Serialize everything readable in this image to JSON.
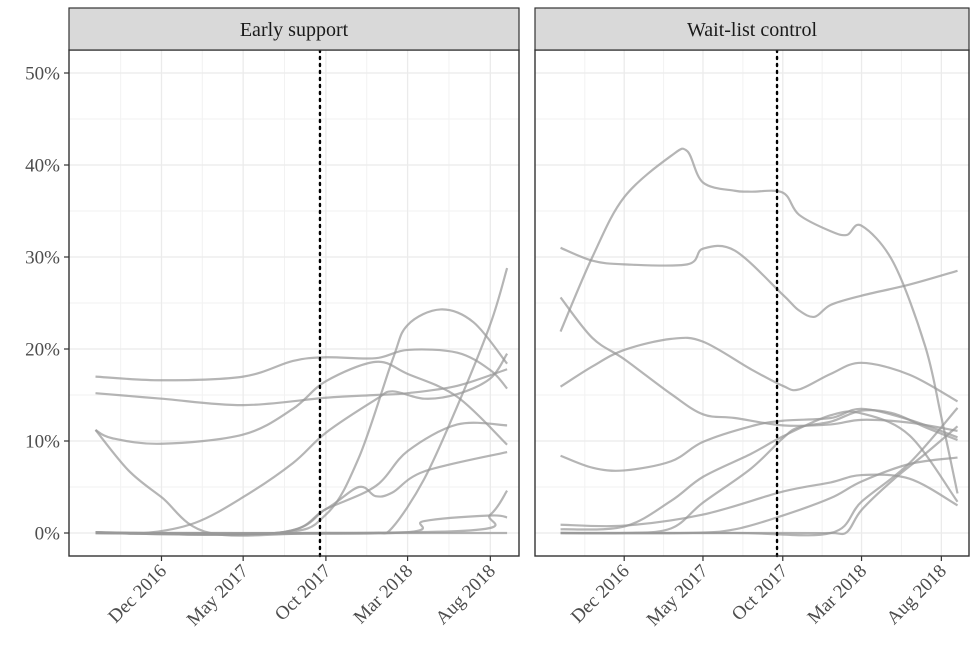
{
  "chart_data": {
    "type": "line",
    "facet_labels": [
      "Early support",
      "Wait-list control"
    ],
    "y_tick_labels": [
      "0%",
      "10%",
      "20%",
      "30%",
      "40%",
      "50%"
    ],
    "y_ticks": [
      0,
      10,
      20,
      30,
      40,
      50
    ],
    "ylim": [
      -2.5,
      52.5
    ],
    "x_tick_labels": [
      "Dec 2016",
      "May 2017",
      "Oct 2017",
      "Mar 2018",
      "Aug 2018"
    ],
    "x_ticks": [
      "2016-12-01",
      "2017-05-01",
      "2017-10-01",
      "2018-03-01",
      "2018-08-01"
    ],
    "xlim": [
      "2016-06-13",
      "2018-09-23"
    ],
    "reference_line_date": "2017-09-20",
    "grid": true,
    "line_color": "#999999",
    "reference_line_color": "#000000",
    "panels": [
      {
        "facet": "Early support",
        "series": [
          {
            "points": [
              [
                "2016-08-01",
                17.0
              ],
              [
                "2016-12-01",
                16.6
              ],
              [
                "2017-05-01",
                17.0
              ],
              [
                "2017-08-01",
                18.7
              ],
              [
                "2017-10-01",
                19.1
              ],
              [
                "2018-01-01",
                19.0
              ],
              [
                "2018-03-01",
                19.9
              ],
              [
                "2018-06-01",
                19.6
              ],
              [
                "2018-08-01",
                17.7
              ],
              [
                "2018-09-01",
                15.7
              ]
            ]
          },
          {
            "points": [
              [
                "2016-08-01",
                15.2
              ],
              [
                "2016-12-01",
                14.6
              ],
              [
                "2017-05-01",
                13.9
              ],
              [
                "2017-10-01",
                14.7
              ],
              [
                "2018-01-01",
                15.0
              ],
              [
                "2018-03-01",
                15.2
              ],
              [
                "2018-06-01",
                16.0
              ],
              [
                "2018-09-01",
                17.8
              ]
            ]
          },
          {
            "points": [
              [
                "2016-08-01",
                11.2
              ],
              [
                "2016-09-01",
                10.3
              ],
              [
                "2016-12-01",
                9.7
              ],
              [
                "2017-05-01",
                10.7
              ],
              [
                "2017-08-01",
                13.5
              ],
              [
                "2017-10-01",
                16.5
              ],
              [
                "2018-01-01",
                18.6
              ],
              [
                "2018-03-01",
                17.3
              ],
              [
                "2018-06-01",
                14.8
              ],
              [
                "2018-09-01",
                9.6
              ]
            ]
          },
          {
            "points": [
              [
                "2016-08-01",
                11.2
              ],
              [
                "2016-10-01",
                6.8
              ],
              [
                "2016-12-01",
                3.9
              ],
              [
                "2017-03-01",
                0.0
              ],
              [
                "2017-10-01",
                0.0
              ],
              [
                "2018-09-01",
                0.0
              ]
            ]
          },
          {
            "points": [
              [
                "2016-08-01",
                0.1
              ],
              [
                "2016-11-01",
                0.0
              ],
              [
                "2017-02-01",
                1.1
              ],
              [
                "2017-05-01",
                3.9
              ],
              [
                "2017-08-01",
                7.6
              ],
              [
                "2017-10-01",
                10.9
              ],
              [
                "2018-01-01",
                14.5
              ],
              [
                "2018-02-01",
                15.4
              ],
              [
                "2018-04-01",
                14.6
              ],
              [
                "2018-06-01",
                15.1
              ],
              [
                "2018-08-01",
                16.8
              ],
              [
                "2018-09-01",
                19.5
              ]
            ]
          },
          {
            "points": [
              [
                "2016-08-01",
                0.1
              ],
              [
                "2017-07-01",
                0.0
              ],
              [
                "2017-10-01",
                2.0
              ],
              [
                "2017-12-01",
                8.2
              ],
              [
                "2018-02-01",
                18.8
              ],
              [
                "2018-03-01",
                22.6
              ],
              [
                "2018-05-01",
                24.3
              ],
              [
                "2018-07-01",
                22.9
              ],
              [
                "2018-09-01",
                18.4
              ]
            ]
          },
          {
            "points": [
              [
                "2016-08-01",
                0.0
              ],
              [
                "2017-07-01",
                0.0
              ],
              [
                "2017-10-01",
                2.6
              ],
              [
                "2018-01-01",
                5.1
              ],
              [
                "2018-03-01",
                8.9
              ],
              [
                "2018-06-01",
                11.8
              ],
              [
                "2018-09-01",
                11.7
              ]
            ]
          },
          {
            "points": [
              [
                "2016-08-01",
                0.0
              ],
              [
                "2017-07-01",
                0.0
              ],
              [
                "2017-10-01",
                2.6
              ],
              [
                "2017-12-01",
                5.0
              ],
              [
                "2018-01-01",
                4.0
              ],
              [
                "2018-02-01",
                4.4
              ],
              [
                "2018-04-01",
                6.7
              ],
              [
                "2018-09-01",
                8.8
              ]
            ]
          },
          {
            "points": [
              [
                "2016-08-01",
                0.0
              ],
              [
                "2017-10-01",
                0.0
              ],
              [
                "2018-01-01",
                0.0
              ],
              [
                "2018-02-01",
                0.6
              ],
              [
                "2018-04-01",
                5.9
              ],
              [
                "2018-06-01",
                13.8
              ],
              [
                "2018-08-01",
                22.7
              ],
              [
                "2018-09-01",
                28.8
              ]
            ]
          },
          {
            "points": [
              [
                "2016-08-01",
                0.0
              ],
              [
                "2018-02-01",
                0.0
              ],
              [
                "2018-04-01",
                1.3
              ],
              [
                "2018-08-01",
                1.9
              ],
              [
                "2018-09-01",
                1.7
              ]
            ]
          },
          {
            "points": [
              [
                "2016-08-01",
                0.0
              ],
              [
                "2018-06-01",
                0.2
              ],
              [
                "2018-08-01",
                2.0
              ],
              [
                "2018-09-01",
                4.6
              ]
            ]
          }
        ]
      },
      {
        "facet": "Wait-list control",
        "series": [
          {
            "points": [
              [
                "2016-08-01",
                21.9
              ],
              [
                "2016-10-01",
                30.0
              ],
              [
                "2016-12-01",
                36.5
              ],
              [
                "2017-03-01",
                41.0
              ],
              [
                "2017-04-01",
                41.5
              ],
              [
                "2017-05-01",
                38.1
              ],
              [
                "2017-07-01",
                37.2
              ],
              [
                "2017-08-01",
                37.1
              ],
              [
                "2017-10-01",
                37.0
              ],
              [
                "2017-11-01",
                34.6
              ],
              [
                "2018-01-01",
                32.8
              ],
              [
                "2018-02-01",
                32.4
              ],
              [
                "2018-03-01",
                33.4
              ],
              [
                "2018-05-01",
                29.4
              ],
              [
                "2018-07-01",
                20.3
              ],
              [
                "2018-08-01",
                12.6
              ],
              [
                "2018-09-01",
                4.3
              ]
            ]
          },
          {
            "points": [
              [
                "2016-08-01",
                31.0
              ],
              [
                "2016-10-01",
                29.6
              ],
              [
                "2016-12-01",
                29.2
              ],
              [
                "2017-04-01",
                29.2
              ],
              [
                "2017-05-01",
                30.9
              ],
              [
                "2017-07-01",
                30.7
              ],
              [
                "2017-10-01",
                25.9
              ],
              [
                "2017-11-01",
                24.2
              ],
              [
                "2017-12-01",
                23.5
              ],
              [
                "2018-01-01",
                24.8
              ],
              [
                "2018-03-01",
                25.8
              ],
              [
                "2018-06-01",
                27.0
              ],
              [
                "2018-09-01",
                28.5
              ]
            ]
          },
          {
            "points": [
              [
                "2016-08-01",
                25.6
              ],
              [
                "2016-10-01",
                21.2
              ],
              [
                "2016-12-01",
                18.9
              ],
              [
                "2017-03-01",
                15.1
              ],
              [
                "2017-05-01",
                12.9
              ],
              [
                "2017-07-01",
                12.5
              ],
              [
                "2017-10-01",
                11.7
              ],
              [
                "2018-01-01",
                11.8
              ],
              [
                "2018-03-01",
                12.3
              ],
              [
                "2018-06-01",
                12.0
              ],
              [
                "2018-09-01",
                11.1
              ]
            ]
          },
          {
            "points": [
              [
                "2016-08-01",
                15.9
              ],
              [
                "2016-10-01",
                18.1
              ],
              [
                "2016-12-01",
                19.9
              ],
              [
                "2017-03-01",
                21.1
              ],
              [
                "2017-05-01",
                20.8
              ],
              [
                "2017-08-01",
                17.8
              ],
              [
                "2017-10-01",
                16.0
              ],
              [
                "2017-11-01",
                15.6
              ],
              [
                "2018-01-01",
                17.3
              ],
              [
                "2018-03-01",
                18.5
              ],
              [
                "2018-06-01",
                17.2
              ],
              [
                "2018-09-01",
                14.3
              ]
            ]
          },
          {
            "points": [
              [
                "2016-08-01",
                8.4
              ],
              [
                "2016-10-01",
                7.1
              ],
              [
                "2016-12-01",
                6.8
              ],
              [
                "2017-03-01",
                7.8
              ],
              [
                "2017-05-01",
                9.9
              ],
              [
                "2017-08-01",
                11.6
              ],
              [
                "2017-10-01",
                12.2
              ],
              [
                "2018-01-01",
                12.5
              ],
              [
                "2018-03-01",
                13.5
              ],
              [
                "2018-06-01",
                12.3
              ],
              [
                "2018-09-01",
                10.4
              ]
            ]
          },
          {
            "points": [
              [
                "2016-08-01",
                0.9
              ],
              [
                "2016-12-01",
                0.8
              ],
              [
                "2017-05-01",
                2.0
              ],
              [
                "2017-10-01",
                4.5
              ],
              [
                "2018-01-01",
                5.5
              ],
              [
                "2018-03-01",
                6.3
              ],
              [
                "2018-06-01",
                5.9
              ],
              [
                "2018-09-01",
                3.0
              ]
            ]
          },
          {
            "points": [
              [
                "2016-08-01",
                0.4
              ],
              [
                "2016-12-01",
                0.7
              ],
              [
                "2017-03-01",
                3.5
              ],
              [
                "2017-05-01",
                6.1
              ],
              [
                "2017-08-01",
                8.6
              ],
              [
                "2017-10-01",
                10.5
              ],
              [
                "2018-01-01",
                12.8
              ],
              [
                "2018-03-01",
                13.0
              ],
              [
                "2018-06-01",
                10.6
              ],
              [
                "2018-09-01",
                3.4
              ]
            ]
          },
          {
            "points": [
              [
                "2016-08-01",
                0.0
              ],
              [
                "2016-12-01",
                0.0
              ],
              [
                "2017-03-01",
                0.5
              ],
              [
                "2017-05-01",
                3.3
              ],
              [
                "2017-08-01",
                7.0
              ],
              [
                "2017-10-01",
                10.3
              ],
              [
                "2017-11-01",
                11.5
              ],
              [
                "2018-01-01",
                12.1
              ],
              [
                "2018-03-01",
                13.3
              ],
              [
                "2018-05-01",
                13.0
              ],
              [
                "2018-07-01",
                11.5
              ],
              [
                "2018-09-01",
                10.1
              ]
            ]
          },
          {
            "points": [
              [
                "2016-08-01",
                0.0
              ],
              [
                "2017-04-01",
                0.0
              ],
              [
                "2017-07-01",
                0.4
              ],
              [
                "2017-10-01",
                1.9
              ],
              [
                "2018-01-01",
                3.8
              ],
              [
                "2018-03-01",
                5.6
              ],
              [
                "2018-06-01",
                7.5
              ],
              [
                "2018-09-01",
                8.2
              ]
            ]
          },
          {
            "points": [
              [
                "2016-08-01",
                0.0
              ],
              [
                "2017-07-01",
                0.0
              ],
              [
                "2018-01-01",
                0.0
              ],
              [
                "2018-03-01",
                3.4
              ],
              [
                "2018-06-01",
                7.6
              ],
              [
                "2018-09-01",
                13.6
              ]
            ]
          },
          {
            "points": [
              [
                "2016-08-01",
                0.0
              ],
              [
                "2017-10-01",
                0.0
              ],
              [
                "2018-01-01",
                0.0
              ],
              [
                "2018-02-01",
                0.1
              ],
              [
                "2018-03-01",
                2.5
              ],
              [
                "2018-05-01",
                5.8
              ],
              [
                "2018-07-01",
                8.6
              ],
              [
                "2018-09-01",
                11.6
              ]
            ]
          }
        ]
      }
    ]
  }
}
